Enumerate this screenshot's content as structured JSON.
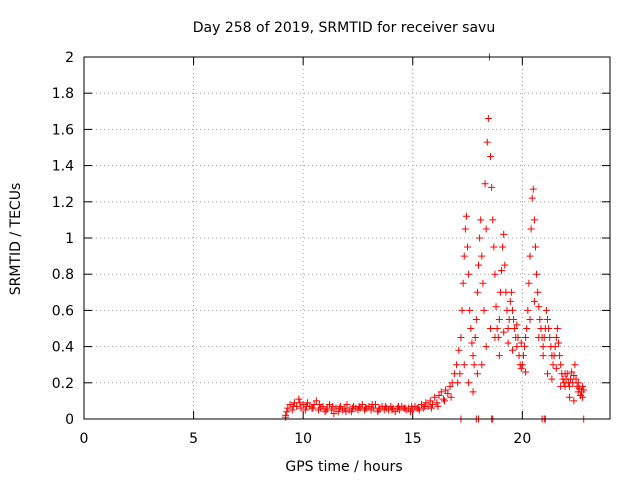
{
  "chart_data": {
    "type": "scatter",
    "title": "Day 258 of 2019, SRMTID for receiver savu",
    "xlabel": "GPS time / hours",
    "ylabel": "SRMTID / TECUs",
    "xlim": [
      0,
      24
    ],
    "ylim": [
      0,
      2
    ],
    "xticks": [
      0,
      5,
      10,
      15,
      20
    ],
    "yticks": [
      0,
      0.2,
      0.4,
      0.6,
      0.8,
      1,
      1.2,
      1.4,
      1.6,
      1.8,
      2
    ],
    "xtick_labels": [
      "0",
      "5",
      "10",
      "15",
      "20"
    ],
    "ytick_labels": [
      "0",
      "0.2",
      "0.4",
      "0.6",
      "0.8",
      "1",
      "1.2",
      "1.4",
      "1.6",
      "1.8",
      "2"
    ],
    "grid": true,
    "marker": "+",
    "color": "#ff0000",
    "series": [
      {
        "name": "SRMTID",
        "points": [
          [
            9.2,
            0.02
          ],
          [
            9.3,
            0.06
          ],
          [
            9.4,
            0.08
          ],
          [
            9.5,
            0.05
          ],
          [
            9.6,
            0.09
          ],
          [
            9.7,
            0.07
          ],
          [
            9.8,
            0.11
          ],
          [
            9.9,
            0.06
          ],
          [
            10.0,
            0.08
          ],
          [
            10.1,
            0.05
          ],
          [
            10.2,
            0.09
          ],
          [
            10.3,
            0.07
          ],
          [
            10.4,
            0.06
          ],
          [
            10.5,
            0.08
          ],
          [
            10.6,
            0.1
          ],
          [
            10.7,
            0.05
          ],
          [
            10.8,
            0.06
          ],
          [
            10.9,
            0.07
          ],
          [
            11.0,
            0.04
          ],
          [
            11.1,
            0.06
          ],
          [
            11.2,
            0.08
          ],
          [
            11.3,
            0.05
          ],
          [
            11.4,
            0.03
          ],
          [
            11.5,
            0.06
          ],
          [
            11.6,
            0.04
          ],
          [
            11.7,
            0.07
          ],
          [
            11.8,
            0.05
          ],
          [
            11.9,
            0.06
          ],
          [
            12.0,
            0.08
          ],
          [
            12.1,
            0.05
          ],
          [
            12.2,
            0.04
          ],
          [
            12.3,
            0.07
          ],
          [
            12.4,
            0.06
          ],
          [
            12.5,
            0.05
          ],
          [
            12.6,
            0.06
          ],
          [
            12.7,
            0.08
          ],
          [
            12.8,
            0.05
          ],
          [
            12.9,
            0.06
          ],
          [
            13.0,
            0.07
          ],
          [
            13.1,
            0.05
          ],
          [
            13.2,
            0.06
          ],
          [
            13.3,
            0.08
          ],
          [
            13.4,
            0.04
          ],
          [
            13.5,
            0.06
          ],
          [
            13.6,
            0.07
          ],
          [
            13.7,
            0.05
          ],
          [
            13.8,
            0.06
          ],
          [
            13.9,
            0.05
          ],
          [
            14.0,
            0.07
          ],
          [
            14.1,
            0.06
          ],
          [
            14.2,
            0.04
          ],
          [
            14.3,
            0.06
          ],
          [
            14.4,
            0.05
          ],
          [
            14.5,
            0.07
          ],
          [
            14.6,
            0.06
          ],
          [
            14.7,
            0.05
          ],
          [
            14.8,
            0.06
          ],
          [
            14.9,
            0.04
          ],
          [
            15.0,
            0.05
          ],
          [
            15.1,
            0.07
          ],
          [
            15.2,
            0.06
          ],
          [
            15.3,
            0.05
          ],
          [
            15.4,
            0.08
          ],
          [
            15.5,
            0.06
          ],
          [
            15.6,
            0.09
          ],
          [
            15.7,
            0.07
          ],
          [
            15.8,
            0.1
          ],
          [
            15.9,
            0.08
          ],
          [
            16.0,
            0.12
          ],
          [
            16.1,
            0.09
          ],
          [
            16.2,
            0.13
          ],
          [
            16.3,
            0.15
          ],
          [
            16.4,
            0.11
          ],
          [
            16.5,
            0.16
          ],
          [
            16.6,
            0.14
          ],
          [
            16.7,
            0.18
          ],
          [
            16.8,
            0.2
          ],
          [
            16.9,
            0.25
          ],
          [
            17.0,
            0.3
          ],
          [
            17.1,
            0.38
          ],
          [
            17.2,
            0.45
          ],
          [
            17.25,
            0.6
          ],
          [
            17.3,
            0.75
          ],
          [
            17.35,
            0.9
          ],
          [
            17.4,
            1.05
          ],
          [
            17.45,
            1.12
          ],
          [
            17.5,
            0.95
          ],
          [
            17.55,
            0.8
          ],
          [
            17.6,
            0.6
          ],
          [
            17.65,
            0.5
          ],
          [
            17.7,
            0.42
          ],
          [
            17.75,
            0.35
          ],
          [
            17.8,
            0.3
          ],
          [
            17.85,
            0.45
          ],
          [
            17.9,
            0.55
          ],
          [
            17.95,
            0.7
          ],
          [
            18.0,
            0.85
          ],
          [
            18.05,
            1.0
          ],
          [
            18.1,
            1.1
          ],
          [
            18.15,
            0.9
          ],
          [
            18.2,
            0.75
          ],
          [
            18.25,
            0.6
          ],
          [
            18.3,
            1.3
          ],
          [
            18.35,
            1.05
          ],
          [
            18.4,
            1.53
          ],
          [
            18.45,
            1.66
          ],
          [
            18.5,
            2.0
          ],
          [
            18.55,
            1.45
          ],
          [
            18.6,
            1.28
          ],
          [
            18.65,
            1.1
          ],
          [
            18.7,
            0.95
          ],
          [
            18.75,
            0.8
          ],
          [
            18.8,
            0.62
          ],
          [
            18.85,
            0.5
          ],
          [
            18.9,
            0.45
          ],
          [
            18.95,
            0.55
          ],
          [
            19.0,
            0.7
          ],
          [
            19.05,
            0.82
          ],
          [
            19.1,
            0.95
          ],
          [
            19.15,
            1.02
          ],
          [
            19.2,
            0.85
          ],
          [
            19.25,
            0.7
          ],
          [
            19.3,
            0.6
          ],
          [
            19.35,
            0.5
          ],
          [
            19.4,
            0.55
          ],
          [
            19.45,
            0.65
          ],
          [
            19.5,
            0.7
          ],
          [
            19.55,
            0.6
          ],
          [
            19.6,
            0.55
          ],
          [
            19.65,
            0.5
          ],
          [
            19.7,
            0.45
          ],
          [
            19.75,
            0.4
          ],
          [
            19.8,
            0.45
          ],
          [
            19.85,
            0.35
          ],
          [
            19.9,
            0.3
          ],
          [
            19.95,
            0.28
          ],
          [
            20.0,
            0.3
          ],
          [
            20.05,
            0.35
          ],
          [
            20.1,
            0.4
          ],
          [
            20.15,
            0.45
          ],
          [
            20.2,
            0.5
          ],
          [
            20.25,
            0.6
          ],
          [
            20.3,
            0.75
          ],
          [
            20.35,
            0.9
          ],
          [
            20.4,
            1.05
          ],
          [
            20.45,
            1.22
          ],
          [
            20.5,
            1.27
          ],
          [
            20.55,
            1.1
          ],
          [
            20.6,
            0.95
          ],
          [
            20.65,
            0.8
          ],
          [
            20.7,
            0.7
          ],
          [
            20.75,
            0.62
          ],
          [
            20.8,
            0.55
          ],
          [
            20.85,
            0.5
          ],
          [
            20.9,
            0.45
          ],
          [
            20.95,
            0.4
          ],
          [
            21.0,
            0.45
          ],
          [
            21.05,
            0.5
          ],
          [
            21.1,
            0.6
          ],
          [
            21.15,
            0.55
          ],
          [
            21.2,
            0.5
          ],
          [
            21.25,
            0.45
          ],
          [
            21.3,
            0.4
          ],
          [
            21.35,
            0.35
          ],
          [
            21.4,
            0.3
          ],
          [
            21.45,
            0.35
          ],
          [
            21.5,
            0.4
          ],
          [
            21.55,
            0.45
          ],
          [
            21.6,
            0.5
          ],
          [
            21.65,
            0.42
          ],
          [
            21.7,
            0.35
          ],
          [
            21.75,
            0.3
          ],
          [
            21.8,
            0.25
          ],
          [
            21.85,
            0.22
          ],
          [
            21.9,
            0.2
          ],
          [
            21.95,
            0.18
          ],
          [
            22.0,
            0.22
          ],
          [
            22.05,
            0.25
          ],
          [
            22.1,
            0.2
          ],
          [
            22.15,
            0.18
          ],
          [
            22.2,
            0.22
          ],
          [
            22.25,
            0.26
          ],
          [
            22.3,
            0.2
          ],
          [
            22.35,
            0.24
          ],
          [
            22.4,
            0.3
          ],
          [
            22.45,
            0.22
          ],
          [
            22.5,
            0.18
          ],
          [
            22.55,
            0.15
          ],
          [
            22.6,
            0.17
          ],
          [
            22.65,
            0.13
          ],
          [
            22.7,
            0.15
          ],
          [
            22.75,
            0.18
          ],
          [
            22.8,
            0.16
          ],
          [
            9.25,
            0.04
          ],
          [
            9.55,
            0.07
          ],
          [
            9.85,
            0.09
          ],
          [
            10.15,
            0.07
          ],
          [
            10.45,
            0.06
          ],
          [
            10.75,
            0.08
          ],
          [
            11.05,
            0.05
          ],
          [
            11.35,
            0.07
          ],
          [
            11.65,
            0.06
          ],
          [
            11.95,
            0.04
          ],
          [
            12.25,
            0.06
          ],
          [
            12.55,
            0.07
          ],
          [
            12.85,
            0.06
          ],
          [
            13.15,
            0.08
          ],
          [
            13.45,
            0.05
          ],
          [
            13.75,
            0.07
          ],
          [
            14.05,
            0.05
          ],
          [
            14.35,
            0.07
          ],
          [
            14.65,
            0.06
          ],
          [
            14.95,
            0.07
          ],
          [
            15.25,
            0.06
          ],
          [
            15.55,
            0.07
          ],
          [
            15.85,
            0.06
          ],
          [
            16.15,
            0.07
          ],
          [
            16.45,
            0.1
          ],
          [
            16.75,
            0.12
          ],
          [
            17.05,
            0.2
          ],
          [
            17.15,
            0.25
          ],
          [
            17.35,
            0.3
          ],
          [
            17.55,
            0.2
          ],
          [
            17.75,
            0.15
          ],
          [
            17.95,
            0.25
          ],
          [
            18.15,
            0.3
          ],
          [
            18.35,
            0.4
          ],
          [
            18.55,
            0.5
          ],
          [
            18.75,
            0.45
          ],
          [
            18.95,
            0.35
          ],
          [
            19.15,
            0.48
          ],
          [
            19.35,
            0.42
          ],
          [
            19.55,
            0.38
          ],
          [
            19.75,
            0.52
          ],
          [
            19.95,
            0.42
          ],
          [
            20.15,
            0.26
          ],
          [
            20.35,
            0.55
          ],
          [
            20.55,
            0.65
          ],
          [
            20.75,
            0.45
          ],
          [
            20.95,
            0.35
          ],
          [
            21.15,
            0.25
          ],
          [
            21.35,
            0.22
          ],
          [
            21.55,
            0.28
          ],
          [
            21.75,
            0.18
          ],
          [
            21.95,
            0.25
          ],
          [
            22.15,
            0.12
          ],
          [
            22.35,
            0.1
          ],
          [
            22.55,
            0.2
          ],
          [
            22.75,
            0.12
          ],
          [
            17.2,
            0.0
          ],
          [
            17.9,
            0.0
          ],
          [
            18.0,
            0.0
          ],
          [
            18.6,
            0.0
          ],
          [
            18.65,
            0.0
          ],
          [
            20.9,
            0.0
          ],
          [
            21.0,
            0.0
          ],
          [
            21.05,
            0.0
          ],
          [
            22.8,
            0.0
          ],
          [
            9.2,
            0.01
          ]
        ]
      }
    ]
  }
}
